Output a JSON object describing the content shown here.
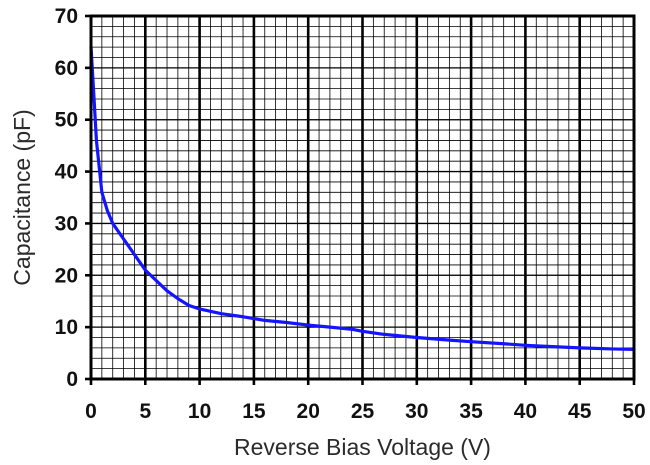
{
  "chart_data": {
    "type": "line",
    "title": "",
    "xlabel": "Reverse Bias Voltage (V)",
    "ylabel": "Capacitance (pF)",
    "xlim": [
      0,
      50
    ],
    "ylim": [
      0,
      70
    ],
    "x_ticks": [
      "0",
      "5",
      "10",
      "15",
      "20",
      "25",
      "30",
      "35",
      "40",
      "45",
      "50"
    ],
    "y_ticks": [
      "0",
      "10",
      "20",
      "30",
      "40",
      "50",
      "60",
      "70"
    ],
    "grid": true,
    "legend": "none",
    "series": [
      {
        "color": "#1414ff",
        "x": [
          0,
          0.2,
          0.5,
          1,
          1.5,
          2,
          3,
          4,
          5,
          6,
          7,
          8,
          9,
          10,
          12,
          14,
          16,
          18,
          20,
          22,
          24,
          25,
          27,
          30,
          33,
          35,
          38,
          40,
          43,
          45,
          48,
          50
        ],
        "y": [
          64,
          57,
          46,
          36,
          32.5,
          30,
          27,
          24,
          21,
          19,
          17,
          15.5,
          14.2,
          13.5,
          12.6,
          12.0,
          11.3,
          10.9,
          10.4,
          10.0,
          9.6,
          9.2,
          8.6,
          8.0,
          7.5,
          7.2,
          6.8,
          6.5,
          6.2,
          6.0,
          5.8,
          5.7
        ]
      }
    ]
  }
}
